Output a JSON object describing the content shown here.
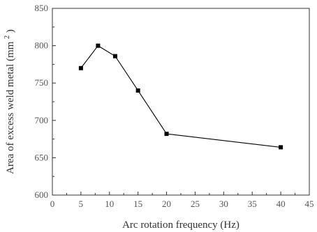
{
  "chart_data": {
    "type": "line",
    "xlabel": "Arc rotation frequency (Hz)",
    "ylabel": "Area of excess weld metal",
    "ylabel_unit_prefix": "(mm",
    "ylabel_unit_exp": "2",
    "ylabel_unit_suffix": ")",
    "xlim": [
      0,
      45
    ],
    "ylim": [
      600,
      850
    ],
    "xticks": [
      0,
      5,
      10,
      15,
      20,
      25,
      30,
      35,
      40,
      45
    ],
    "yticks": [
      600,
      650,
      700,
      750,
      800,
      850
    ],
    "grid": false,
    "series": [
      {
        "x": [
          5,
          8,
          11,
          15,
          20,
          40
        ],
        "y": [
          770,
          800,
          786,
          740,
          682,
          664
        ]
      }
    ]
  }
}
